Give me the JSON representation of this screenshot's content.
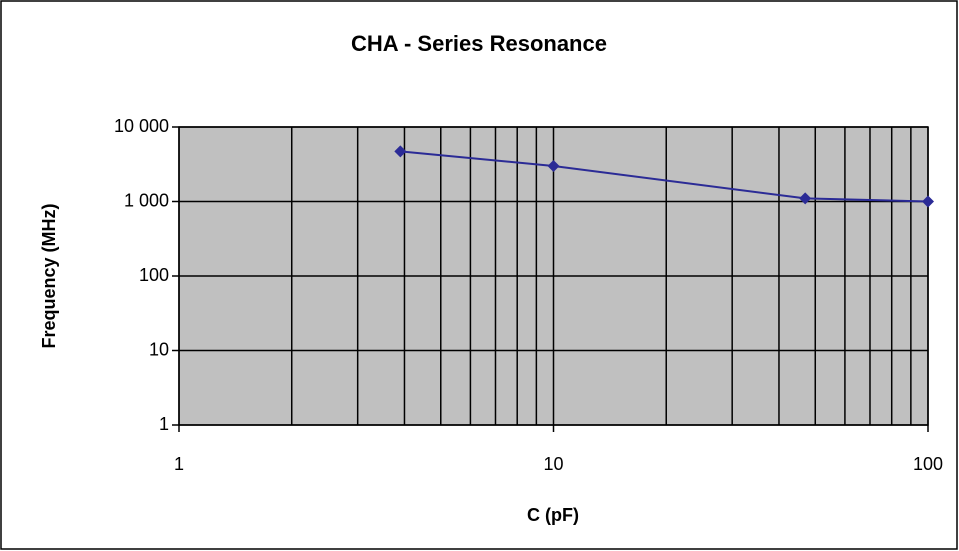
{
  "chart_data": {
    "type": "line",
    "title": "CHA - Series Resonance",
    "x_label": "C (pF)",
    "y_label": "Frequency (MHz)",
    "x_log": true,
    "y_log": true,
    "grid": true,
    "plot_background": "#c0c0c0",
    "xlim": [
      1,
      100
    ],
    "xticks": [
      1,
      10,
      100
    ],
    "xminorticks": [
      2,
      3,
      4,
      5,
      6,
      7,
      8,
      9,
      20,
      30,
      40,
      50,
      60,
      70,
      80,
      90
    ],
    "ylim": [
      1,
      10000
    ],
    "yticks": [
      1,
      10,
      100,
      {
        "value": 1000,
        "label": "1 000"
      },
      {
        "value": 10000,
        "label": "10 000"
      }
    ],
    "series": [
      {
        "name": "CHA",
        "color": "#2b2b96",
        "x": [
          3.9,
          10,
          47,
          100
        ],
        "values": [
          4700,
          3000,
          1100,
          1000
        ]
      }
    ]
  }
}
